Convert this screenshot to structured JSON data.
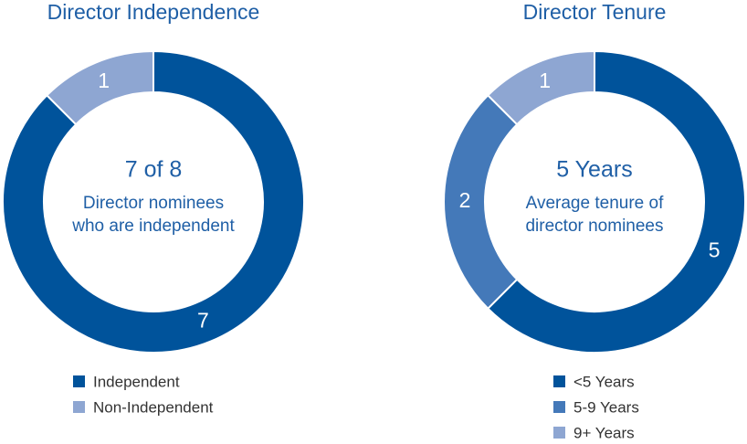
{
  "chart_data": [
    {
      "type": "donut",
      "title": "Director Independence",
      "center_value": "7 of 8",
      "center_text": [
        "Director nominees",
        "who are independent"
      ],
      "categories": [
        "Independent",
        "Non-Independent"
      ],
      "values": [
        7,
        1
      ],
      "colors": [
        "#00539b",
        "#8ea6d2"
      ]
    },
    {
      "type": "donut",
      "title": "Director Tenure",
      "center_value": "5 Years",
      "center_text": [
        "Average tenure of",
        "director nominees"
      ],
      "categories": [
        "<5 Years",
        "5-9 Years",
        "9+ Years"
      ],
      "values": [
        5,
        2,
        1
      ],
      "colors": [
        "#00539b",
        "#4479b9",
        "#8ea6d2"
      ]
    }
  ]
}
